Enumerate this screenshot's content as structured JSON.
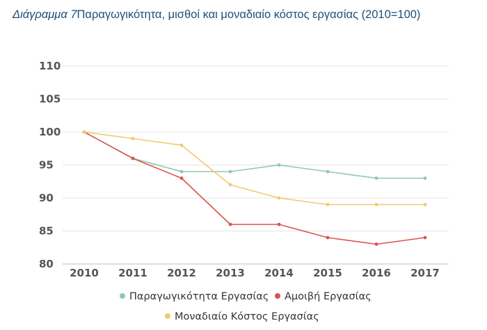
{
  "caption": {
    "lead": "Διάγραμμα 7",
    "text": "Παραγωγικότητα, μισθοί και μοναδιαίο κόστος εργασίας (2010=100)"
  },
  "chart_data": {
    "type": "line",
    "title": "Διάγραμμα 7Παραγωγικότητα, μισθοί και μοναδιαίο κόστος εργασίας (2010=100)",
    "x": [
      "2010",
      "2011",
      "2012",
      "2013",
      "2014",
      "2015",
      "2016",
      "2017"
    ],
    "ylim": [
      80,
      110
    ],
    "yticks": [
      "80",
      "85",
      "90",
      "95",
      "100",
      "105",
      "110"
    ],
    "grid": true,
    "legend_position": "bottom",
    "series": [
      {
        "name": "Παραγωγικότητα Εργασίας",
        "color": "#8fc9a9",
        "values": [
          100,
          96,
          94,
          94,
          95,
          94,
          93,
          93
        ]
      },
      {
        "name": "Αμοιβή Εργασίας",
        "color": "#d9534f",
        "values": [
          100,
          96,
          93,
          86,
          86,
          84,
          83,
          84
        ]
      },
      {
        "name": "Μοναδιαίο Κόστος Εργασίας",
        "color": "#f2ca6b",
        "values": [
          100,
          99,
          98,
          92,
          90,
          89,
          89,
          89
        ]
      }
    ]
  }
}
